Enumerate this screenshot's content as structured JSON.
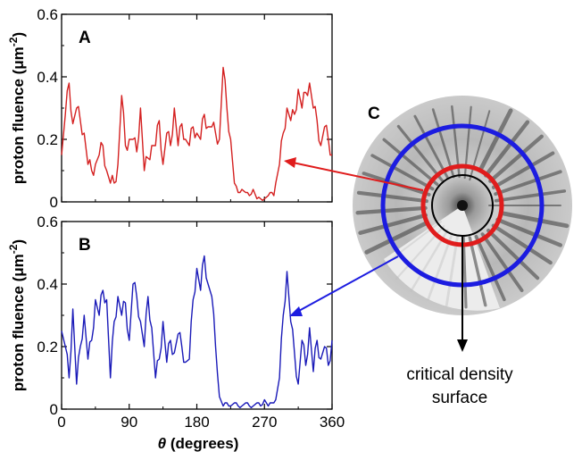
{
  "chart_data": [
    {
      "type": "line",
      "panel_label": "A",
      "ylabel": "proton fluence (μm⁻²)",
      "xlabel": "",
      "xlim": [
        0,
        360
      ],
      "ylim": [
        0,
        0.6
      ],
      "xticks": [
        "0",
        "90",
        "180",
        "270",
        "360"
      ],
      "yticks": [
        "0",
        "0.2",
        "0.4",
        "0.6"
      ],
      "series": [
        {
          "color": "#d42020",
          "x": [
            0,
            5,
            10,
            15,
            20,
            25,
            30,
            35,
            40,
            45,
            50,
            55,
            60,
            65,
            70,
            75,
            80,
            85,
            90,
            95,
            100,
            105,
            110,
            115,
            120,
            125,
            130,
            135,
            140,
            145,
            150,
            155,
            160,
            165,
            170,
            175,
            180,
            185,
            190,
            195,
            200,
            205,
            210,
            215,
            220,
            225,
            230,
            235,
            240,
            245,
            250,
            255,
            260,
            265,
            270,
            275,
            280,
            285,
            290,
            295,
            300,
            305,
            310,
            315,
            320,
            325,
            330,
            335,
            340,
            345,
            350,
            355,
            360
          ],
          "y": [
            0.15,
            0.28,
            0.38,
            0.25,
            0.3,
            0.26,
            0.22,
            0.12,
            0.1,
            0.12,
            0.15,
            0.18,
            0.1,
            0.06,
            0.06,
            0.12,
            0.34,
            0.18,
            0.2,
            0.2,
            0.16,
            0.3,
            0.1,
            0.14,
            0.18,
            0.18,
            0.26,
            0.12,
            0.22,
            0.18,
            0.3,
            0.18,
            0.25,
            0.2,
            0.18,
            0.24,
            0.22,
            0.2,
            0.28,
            0.24,
            0.24,
            0.22,
            0.2,
            0.43,
            0.3,
            0.2,
            0.06,
            0.03,
            0.04,
            0.03,
            0.02,
            0.04,
            0.01,
            0.01,
            0.01,
            0.02,
            0.03,
            0.06,
            0.12,
            0.22,
            0.3,
            0.26,
            0.28,
            0.36,
            0.3,
            0.35,
            0.38,
            0.3,
            0.26,
            0.18,
            0.24,
            0.2,
            0.15
          ]
        }
      ]
    },
    {
      "type": "line",
      "panel_label": "B",
      "ylabel": "proton fluence (μm⁻²)",
      "xlabel": "θ (degrees)",
      "xlim": [
        0,
        360
      ],
      "ylim": [
        0,
        0.6
      ],
      "xticks": [
        "0",
        "90",
        "180",
        "270",
        "360"
      ],
      "yticks": [
        "0",
        "0.2",
        "0.4",
        "0.6"
      ],
      "series": [
        {
          "color": "#1a1ab8",
          "x": [
            0,
            5,
            10,
            15,
            20,
            25,
            30,
            35,
            40,
            45,
            50,
            55,
            60,
            65,
            70,
            75,
            80,
            85,
            90,
            95,
            100,
            105,
            110,
            115,
            120,
            125,
            130,
            135,
            140,
            145,
            150,
            155,
            160,
            165,
            170,
            175,
            180,
            185,
            190,
            195,
            200,
            205,
            210,
            215,
            220,
            225,
            230,
            235,
            240,
            245,
            250,
            255,
            260,
            265,
            270,
            275,
            280,
            285,
            290,
            295,
            300,
            305,
            310,
            315,
            320,
            325,
            330,
            335,
            340,
            345,
            350,
            355,
            360
          ],
          "y": [
            0.25,
            0.2,
            0.1,
            0.32,
            0.08,
            0.2,
            0.3,
            0.16,
            0.22,
            0.35,
            0.3,
            0.38,
            0.35,
            0.1,
            0.28,
            0.36,
            0.3,
            0.34,
            0.22,
            0.4,
            0.36,
            0.28,
            0.2,
            0.36,
            0.26,
            0.1,
            0.16,
            0.28,
            0.15,
            0.22,
            0.18,
            0.24,
            0.2,
            0.15,
            0.16,
            0.35,
            0.45,
            0.38,
            0.49,
            0.4,
            0.36,
            0.2,
            0.04,
            0.01,
            0.02,
            0.01,
            0.02,
            0.01,
            0.01,
            0.02,
            0.01,
            0.01,
            0.02,
            0.01,
            0.03,
            0.01,
            0.02,
            0.03,
            0.1,
            0.3,
            0.44,
            0.28,
            0.18,
            0.08,
            0.22,
            0.14,
            0.26,
            0.12,
            0.22,
            0.16,
            0.2,
            0.14,
            0.22
          ]
        }
      ]
    }
  ],
  "image_panel": {
    "panel_label": "C",
    "annotation_line1": "critical density",
    "annotation_line2": "surface",
    "ring_colors": {
      "outer": "#1c1ce0",
      "middle": "#e01c1c",
      "inner": "#000000"
    }
  }
}
